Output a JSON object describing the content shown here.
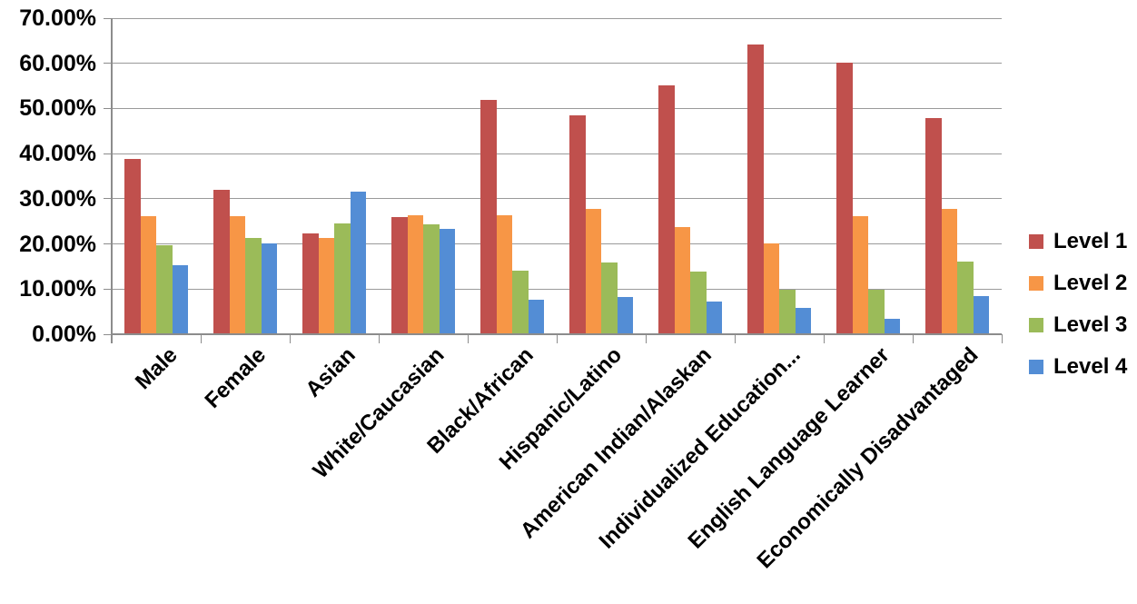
{
  "chart_data": {
    "type": "bar",
    "title": "",
    "xlabel": "",
    "ylabel": "",
    "ylim": [
      0,
      70
    ],
    "ytick_step": 10,
    "ytick_labels": [
      "0.00%",
      "10.00%",
      "20.00%",
      "30.00%",
      "40.00%",
      "50.00%",
      "60.00%",
      "70.00%"
    ],
    "grid": true,
    "legend_position": "right",
    "categories": [
      "Male",
      "Female",
      "Asian",
      "White/Caucasian",
      "Black/African",
      "Hispanic/Latino",
      "American Indian/Alaskan",
      "Individualized Education...",
      "English Language Learner",
      "Economically Disadvantaged"
    ],
    "series": [
      {
        "name": "Level 1",
        "color": "#C0504D",
        "values": [
          38.8,
          32.0,
          22.3,
          25.9,
          51.8,
          48.4,
          55.2,
          64.2,
          60.2,
          47.9
        ]
      },
      {
        "name": "Level 2",
        "color": "#F79646",
        "values": [
          26.2,
          26.2,
          21.4,
          26.3,
          26.3,
          27.7,
          23.8,
          20.1,
          26.1,
          27.7
        ]
      },
      {
        "name": "Level 3",
        "color": "#9BBB59",
        "values": [
          19.7,
          21.3,
          24.5,
          24.3,
          14.1,
          15.8,
          13.8,
          9.9,
          9.9,
          16.1
        ]
      },
      {
        "name": "Level 4",
        "color": "#538DD5",
        "values": [
          15.2,
          20.1,
          31.6,
          23.3,
          7.7,
          8.3,
          7.2,
          5.9,
          3.4,
          8.4
        ]
      }
    ]
  },
  "colors": {
    "gridline": "#9a9a9a",
    "axis": "#8c8c8c",
    "text": "#000000",
    "background": "#ffffff"
  }
}
